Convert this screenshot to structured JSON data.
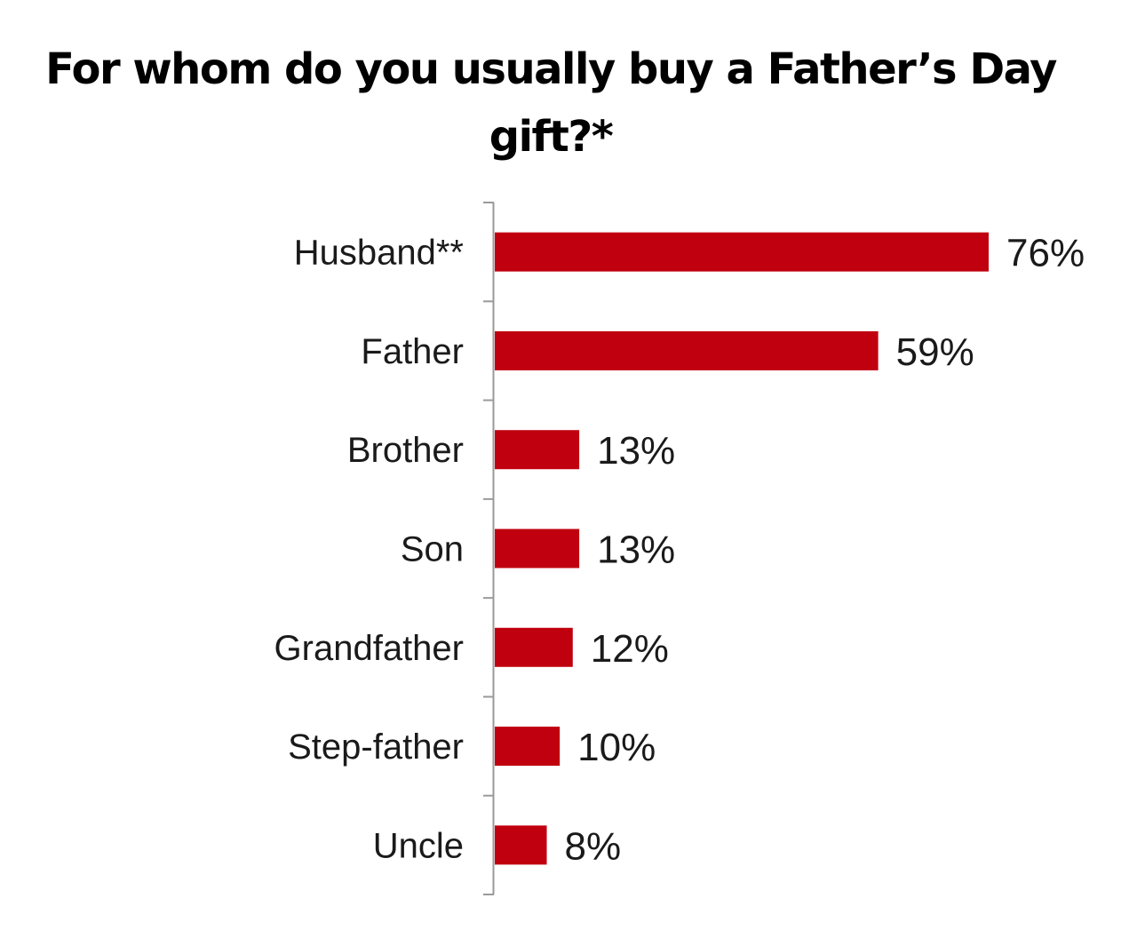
{
  "chart_data": {
    "type": "bar",
    "orientation": "horizontal",
    "title": "For whom do you usually buy a Father’s Day gift?*",
    "categories": [
      "Husband**",
      "Father",
      "Brother",
      "Son",
      "Grandfather",
      "Step-father",
      "Uncle"
    ],
    "values": [
      76,
      59,
      13,
      13,
      12,
      10,
      8
    ],
    "value_labels": [
      "76%",
      "59%",
      "13%",
      "13%",
      "12%",
      "10%",
      "8%"
    ],
    "xlim": [
      0,
      100
    ],
    "grid": false,
    "legend": "none",
    "bar_color": "#c0000f"
  }
}
